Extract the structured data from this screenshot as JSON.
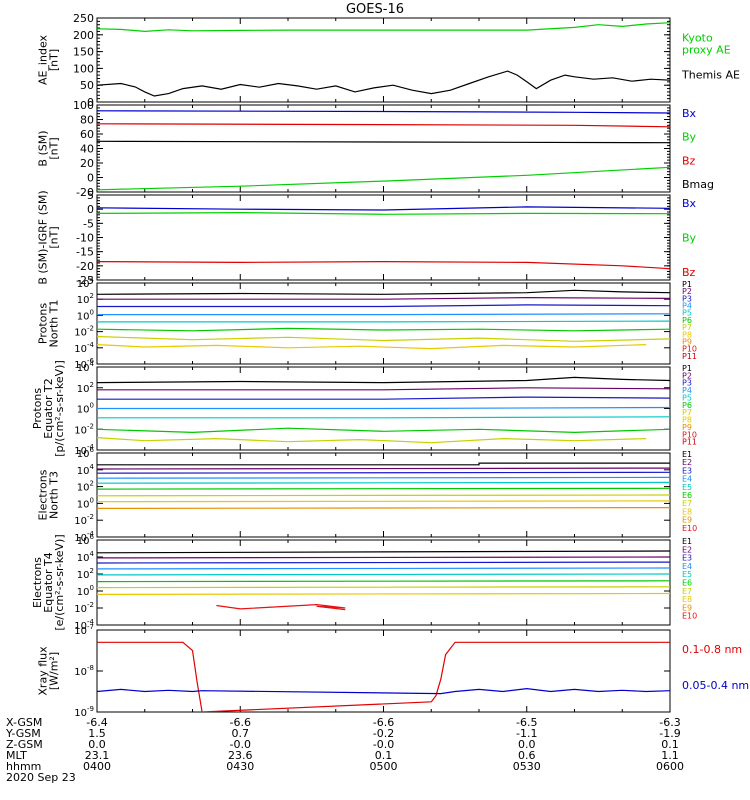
{
  "title": "GOES-16",
  "colors": {
    "black": "#000000",
    "red": "#e00000",
    "green": "#00d000",
    "blue": "#0000cc",
    "p1": "#000000",
    "p2": "#6a006a",
    "p3": "#1818c8",
    "p4": "#1e90ff",
    "p5": "#00c8c8",
    "p6": "#00c800",
    "p7": "#c8d000",
    "p8": "#e8c800",
    "p9": "#e89000",
    "p10": "#e81010",
    "p11": "#c80000"
  },
  "chart_data": [
    {
      "type": "line",
      "id": "ae",
      "ylabel": [
        "AE_index",
        "[nT]"
      ],
      "ylim": [
        0,
        250
      ],
      "log": false,
      "yticks": [
        0,
        50,
        100,
        150,
        200,
        250
      ],
      "series": [
        {
          "name": "Kyoto proxy AE",
          "name_lines": [
            "Kyoto",
            "proxy AE"
          ],
          "color": "green",
          "x": [
            0,
            5,
            10,
            15,
            20,
            30,
            40,
            50,
            60,
            70,
            80,
            90,
            100,
            105,
            110,
            115,
            120
          ],
          "y": [
            218,
            216,
            210,
            215,
            212,
            213,
            214,
            214,
            214,
            214,
            214,
            214,
            222,
            230,
            225,
            232,
            236
          ]
        },
        {
          "name": "Themis AE",
          "name_lines": [
            "Themis AE"
          ],
          "color": "black",
          "x": [
            0,
            5,
            8,
            10,
            12,
            15,
            18,
            22,
            26,
            30,
            34,
            38,
            42,
            46,
            50,
            54,
            58,
            62,
            66,
            70,
            74,
            78,
            82,
            86,
            88,
            90,
            92,
            95,
            98,
            100,
            104,
            108,
            112,
            116,
            120
          ],
          "y": [
            50,
            55,
            45,
            30,
            18,
            25,
            40,
            48,
            38,
            52,
            44,
            55,
            48,
            38,
            48,
            30,
            42,
            50,
            35,
            25,
            35,
            55,
            75,
            92,
            80,
            60,
            40,
            65,
            80,
            75,
            68,
            72,
            62,
            68,
            65
          ]
        }
      ]
    },
    {
      "type": "line",
      "id": "bsm",
      "ylabel": [
        "B (SM)",
        "[nT]"
      ],
      "ylim": [
        -20,
        100
      ],
      "log": false,
      "yticks": [
        -20,
        0,
        20,
        40,
        60,
        80,
        100
      ],
      "series": [
        {
          "name": "Bx",
          "color": "blue",
          "x": [
            0,
            60,
            100,
            120
          ],
          "y": [
            92,
            91,
            90,
            89
          ]
        },
        {
          "name": "By",
          "color": "green",
          "x": [
            0,
            30,
            60,
            90,
            120
          ],
          "y": [
            -17,
            -12,
            -5,
            3,
            14
          ]
        },
        {
          "name": "Bz",
          "color": "red",
          "x": [
            0,
            60,
            100,
            120
          ],
          "y": [
            74,
            73,
            72,
            70
          ]
        },
        {
          "name": "Bmag",
          "color": "black",
          "x": [
            0,
            60,
            120
          ],
          "y": [
            50,
            49,
            48
          ]
        }
      ]
    },
    {
      "type": "line",
      "id": "bigrf",
      "ylabel": [
        "B (SM)-IGRF (SM)",
        "[nT]"
      ],
      "ylim": [
        -25,
        5
      ],
      "log": false,
      "yticks": [
        -25,
        -20,
        -15,
        -10,
        -5,
        0,
        5
      ],
      "series": [
        {
          "name": "Bx",
          "color": "blue",
          "x": [
            0,
            30,
            60,
            90,
            120
          ],
          "y": [
            0.5,
            0,
            -0.3,
            0.8,
            0.3
          ]
        },
        {
          "name": "By",
          "color": "green",
          "x": [
            0,
            30,
            60,
            90,
            120
          ],
          "y": [
            -1.5,
            -1.2,
            -1.8,
            -1.5,
            -1.6
          ]
        },
        {
          "name": "Bz",
          "color": "red",
          "x": [
            0,
            30,
            60,
            90,
            110,
            120
          ],
          "y": [
            -18.5,
            -18.8,
            -18.5,
            -18.8,
            -20,
            -21
          ]
        }
      ]
    },
    {
      "type": "line",
      "id": "pnorth",
      "ylabel": [
        "Protons",
        "North T1"
      ],
      "ylim": [
        -6,
        4
      ],
      "log": true,
      "yticks": [
        -6,
        -4,
        -2,
        0,
        2,
        4
      ],
      "series": [
        {
          "name": "P1",
          "color": "p1",
          "x": [
            0,
            30,
            60,
            90,
            100,
            110,
            120
          ],
          "y": [
            2.6,
            2.7,
            2.6,
            2.8,
            3.1,
            2.9,
            2.8
          ]
        },
        {
          "name": "P2",
          "color": "p2",
          "x": [
            0,
            60,
            90,
            120
          ],
          "y": [
            2.0,
            2.0,
            2.2,
            2.1
          ]
        },
        {
          "name": "P3",
          "color": "p3",
          "x": [
            0,
            60,
            90,
            120
          ],
          "y": [
            1.1,
            1.1,
            1.3,
            1.2
          ]
        },
        {
          "name": "P4",
          "color": "p4",
          "x": [
            0,
            60,
            120
          ],
          "y": [
            0.1,
            0.1,
            0.2
          ]
        },
        {
          "name": "P5",
          "color": "p5",
          "x": [
            0,
            60,
            120
          ],
          "y": [
            -0.8,
            -0.8,
            -0.7
          ]
        },
        {
          "name": "P6",
          "color": "p6",
          "x": [
            0,
            20,
            40,
            60,
            80,
            100,
            120
          ],
          "y": [
            -1.7,
            -1.9,
            -1.6,
            -1.8,
            -1.7,
            -1.9,
            -1.7
          ]
        },
        {
          "name": "P7",
          "color": "p7",
          "x": [
            0,
            20,
            40,
            60,
            80,
            100,
            120
          ],
          "y": [
            -2.6,
            -3.0,
            -2.7,
            -3.1,
            -2.8,
            -3.2,
            -2.9
          ]
        },
        {
          "name": "P8",
          "color": "p8",
          "x": [
            0,
            10,
            25,
            40,
            55,
            70,
            85,
            100,
            115
          ],
          "y": [
            -3.6,
            -3.9,
            -3.7,
            -4.0,
            -3.8,
            -4.1,
            -3.7,
            -3.9,
            -3.6
          ]
        },
        {
          "name": "P9",
          "color": "p9",
          "x": [],
          "y": []
        },
        {
          "name": "P10",
          "color": "p10",
          "x": [],
          "y": []
        },
        {
          "name": "P11",
          "color": "p11",
          "x": [],
          "y": []
        }
      ]
    },
    {
      "type": "line",
      "id": "pequator",
      "ylabel": [
        "Protons",
        "Equator T2",
        "[p/(cm²-s-sr-keV)]"
      ],
      "ylim": [
        -4,
        4
      ],
      "log": true,
      "yticks": [
        -4,
        -2,
        0,
        2,
        4
      ],
      "series": [
        {
          "name": "P1",
          "color": "p1",
          "x": [
            0,
            30,
            60,
            90,
            100,
            110,
            120
          ],
          "y": [
            2.5,
            2.6,
            2.5,
            2.7,
            3.0,
            2.8,
            2.7
          ]
        },
        {
          "name": "P2",
          "color": "p2",
          "x": [
            0,
            60,
            90,
            120
          ],
          "y": [
            1.8,
            1.8,
            2.0,
            1.9
          ]
        },
        {
          "name": "P3",
          "color": "p3",
          "x": [
            0,
            60,
            90,
            120
          ],
          "y": [
            0.9,
            0.9,
            1.1,
            1.0
          ]
        },
        {
          "name": "P4",
          "color": "p4",
          "x": [
            0,
            60,
            120
          ],
          "y": [
            0.0,
            0.0,
            0.1
          ]
        },
        {
          "name": "P5",
          "color": "p5",
          "x": [
            0,
            60,
            120
          ],
          "y": [
            -0.9,
            -0.9,
            -0.8
          ]
        },
        {
          "name": "P6",
          "color": "p6",
          "x": [
            0,
            20,
            40,
            60,
            80,
            100,
            120
          ],
          "y": [
            -2.0,
            -2.3,
            -1.9,
            -2.2,
            -2.0,
            -2.3,
            -2.0
          ]
        },
        {
          "name": "P7",
          "color": "p7",
          "x": [
            0,
            10,
            25,
            40,
            55,
            70,
            85,
            100,
            115
          ],
          "y": [
            -2.8,
            -3.1,
            -2.9,
            -3.2,
            -3.0,
            -3.3,
            -2.9,
            -3.1,
            -2.9
          ]
        },
        {
          "name": "P8",
          "color": "p8",
          "x": [],
          "y": []
        },
        {
          "name": "P9",
          "color": "p9",
          "x": [],
          "y": []
        },
        {
          "name": "P10",
          "color": "p10",
          "x": [],
          "y": []
        },
        {
          "name": "P11",
          "color": "p11",
          "x": [],
          "y": []
        }
      ]
    },
    {
      "type": "line",
      "id": "enorth",
      "ylabel": [
        "Electrons",
        "North T3"
      ],
      "ylim": [
        -4,
        6
      ],
      "log": true,
      "yticks": [
        -4,
        -2,
        0,
        2,
        4,
        6
      ],
      "series": [
        {
          "name": "E1",
          "color": "p1",
          "x": [
            0,
            80,
            80,
            120
          ],
          "y": [
            4.6,
            4.6,
            4.8,
            4.8
          ]
        },
        {
          "name": "E2",
          "color": "p2",
          "x": [
            0,
            120
          ],
          "y": [
            4.1,
            4.2
          ]
        },
        {
          "name": "E3",
          "color": "p3",
          "x": [
            0,
            120
          ],
          "y": [
            3.6,
            3.7
          ]
        },
        {
          "name": "E4",
          "color": "p4",
          "x": [
            0,
            120
          ],
          "y": [
            3.0,
            3.1
          ]
        },
        {
          "name": "E5",
          "color": "p5",
          "x": [
            0,
            120
          ],
          "y": [
            2.4,
            2.5
          ]
        },
        {
          "name": "E6",
          "color": "p6",
          "x": [
            0,
            120
          ],
          "y": [
            1.7,
            1.8
          ]
        },
        {
          "name": "E7",
          "color": "p7",
          "x": [
            0,
            120
          ],
          "y": [
            0.9,
            1.0
          ]
        },
        {
          "name": "E8",
          "color": "p8",
          "x": [
            0,
            120
          ],
          "y": [
            0.2,
            0.3
          ]
        },
        {
          "name": "E9",
          "color": "p9",
          "x": [
            0,
            120
          ],
          "y": [
            -0.6,
            -0.5
          ]
        },
        {
          "name": "E10",
          "color": "p10",
          "x": [],
          "y": []
        }
      ]
    },
    {
      "type": "line",
      "id": "eequator",
      "ylabel": [
        "Electrons",
        "Equator T4",
        "[e/(cm²-s-sr-keV)]"
      ],
      "ylim": [
        -4,
        6
      ],
      "log": true,
      "yticks": [
        -4,
        -2,
        0,
        2,
        4,
        6
      ],
      "series": [
        {
          "name": "E1",
          "color": "p1",
          "x": [
            0,
            120
          ],
          "y": [
            4.5,
            4.7
          ]
        },
        {
          "name": "E2",
          "color": "p2",
          "x": [
            0,
            120
          ],
          "y": [
            3.9,
            4.0
          ]
        },
        {
          "name": "E3",
          "color": "p3",
          "x": [
            0,
            120
          ],
          "y": [
            3.3,
            3.4
          ]
        },
        {
          "name": "E4",
          "color": "p4",
          "x": [
            0,
            120
          ],
          "y": [
            2.6,
            2.7
          ]
        },
        {
          "name": "E5",
          "color": "p5",
          "x": [
            0,
            120
          ],
          "y": [
            1.9,
            2.0
          ]
        },
        {
          "name": "E6",
          "color": "p6",
          "x": [
            0,
            120
          ],
          "y": [
            1.1,
            1.2
          ]
        },
        {
          "name": "E7",
          "color": "p7",
          "x": [
            0,
            120
          ],
          "y": [
            0.4,
            0.5
          ]
        },
        {
          "name": "E8",
          "color": "p8",
          "x": [
            0,
            120
          ],
          "y": [
            -0.4,
            -0.3
          ]
        },
        {
          "name": "E9",
          "color": "p9",
          "x": [],
          "y": []
        },
        {
          "name": "E10",
          "color": "p10",
          "x": [
            25,
            30,
            46,
            52,
            46,
            52
          ],
          "y": [
            -1.7,
            -2.1,
            -1.6,
            -2.0,
            -1.8,
            -2.2
          ]
        }
      ]
    },
    {
      "type": "line",
      "id": "xray",
      "ylabel": [
        "Xray flux",
        "[W/m²]"
      ],
      "ylim": [
        -9,
        -7
      ],
      "log": true,
      "yticks": [
        -9,
        -8,
        -7
      ],
      "series": [
        {
          "name": "0.1-0.8 nm",
          "color": "red",
          "x": [
            0,
            10,
            18,
            20,
            21,
            22,
            70,
            71,
            72,
            73,
            75,
            80,
            90,
            100,
            110,
            120
          ],
          "y": [
            -7.3,
            -7.3,
            -7.3,
            -7.5,
            -8.3,
            -9.0,
            -8.75,
            -8.6,
            -8.2,
            -7.6,
            -7.3,
            -7.3,
            -7.3,
            -7.3,
            -7.3,
            -7.3
          ]
        },
        {
          "name": "0.05-0.4 nm",
          "color": "blue",
          "x": [
            0,
            5,
            10,
            15,
            20,
            22,
            72,
            75,
            80,
            85,
            90,
            95,
            100,
            105,
            110,
            115,
            120
          ],
          "y": [
            -8.5,
            -8.45,
            -8.5,
            -8.47,
            -8.5,
            -8.48,
            -8.55,
            -8.5,
            -8.45,
            -8.5,
            -8.43,
            -8.5,
            -8.45,
            -8.5,
            -8.47,
            -8.5,
            -8.48
          ]
        }
      ]
    }
  ],
  "x_axis": {
    "xlim": [
      0,
      120
    ],
    "rows": [
      {
        "label": "X-GSM",
        "values": [
          "-6.4",
          "-6.6",
          "-6.6",
          "-6.5",
          "-6.3"
        ]
      },
      {
        "label": "Y-GSM",
        "values": [
          "1.5",
          "0.7",
          "-0.2",
          "-1.1",
          "-1.9"
        ]
      },
      {
        "label": "Z-GSM",
        "values": [
          "0.0",
          "-0.0",
          "-0.0",
          "0.0",
          "0.1"
        ]
      },
      {
        "label": "MLT",
        "values": [
          "23.1",
          "23.6",
          "0.1",
          "0.6",
          "1.1"
        ]
      },
      {
        "label": "hhmm",
        "values": [
          "0400",
          "0430",
          "0500",
          "0530",
          "0600"
        ]
      }
    ],
    "date": "2020 Sep 23"
  }
}
